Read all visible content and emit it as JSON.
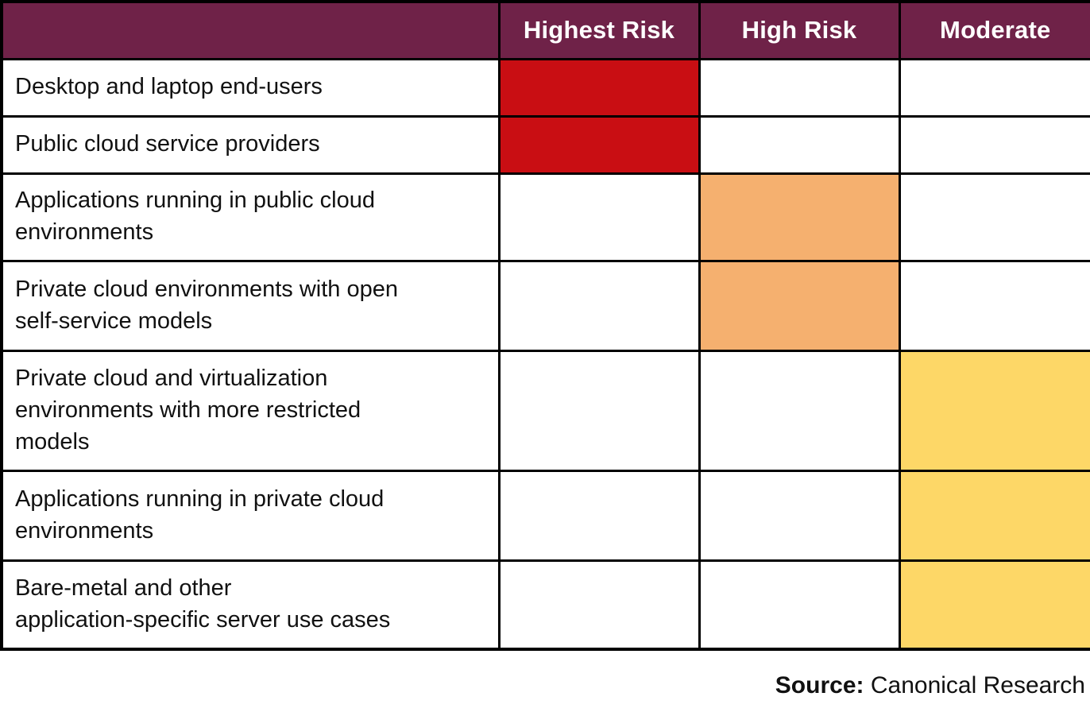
{
  "chart_data": {
    "type": "heatmap",
    "title": "",
    "columns": [
      "Highest Risk",
      "High Risk",
      "Moderate"
    ],
    "rows": [
      {
        "label": "Desktop and laptop end-users",
        "risk": "highest",
        "risk_column": "Highest Risk"
      },
      {
        "label": "Public cloud service providers",
        "risk": "highest",
        "risk_column": "Highest Risk"
      },
      {
        "label": "Applications running in public cloud\nenvironments",
        "risk": "high",
        "risk_column": "High Risk"
      },
      {
        "label": "Private cloud environments with open\nself-service models",
        "risk": "high",
        "risk_column": "High Risk"
      },
      {
        "label": "Private cloud and virtualization\nenvironments with more restricted\nmodels",
        "risk": "moderate",
        "risk_column": "Moderate"
      },
      {
        "label": "Applications running in private cloud\nenvironments",
        "risk": "moderate",
        "risk_column": "Moderate"
      },
      {
        "label": "Bare-metal and other\napplication-specific server use cases",
        "risk": "moderate",
        "risk_column": "Moderate"
      }
    ],
    "legend_position": "none",
    "grid": true
  },
  "colors": {
    "header_bg": "#6F2248",
    "header_text": "#FFFFFF",
    "highest": "#C90E13",
    "high": "#F5B06F",
    "moderate": "#FDD767",
    "border": "#000000"
  },
  "source": {
    "label": "Source:",
    "text": "Canonical Research"
  }
}
